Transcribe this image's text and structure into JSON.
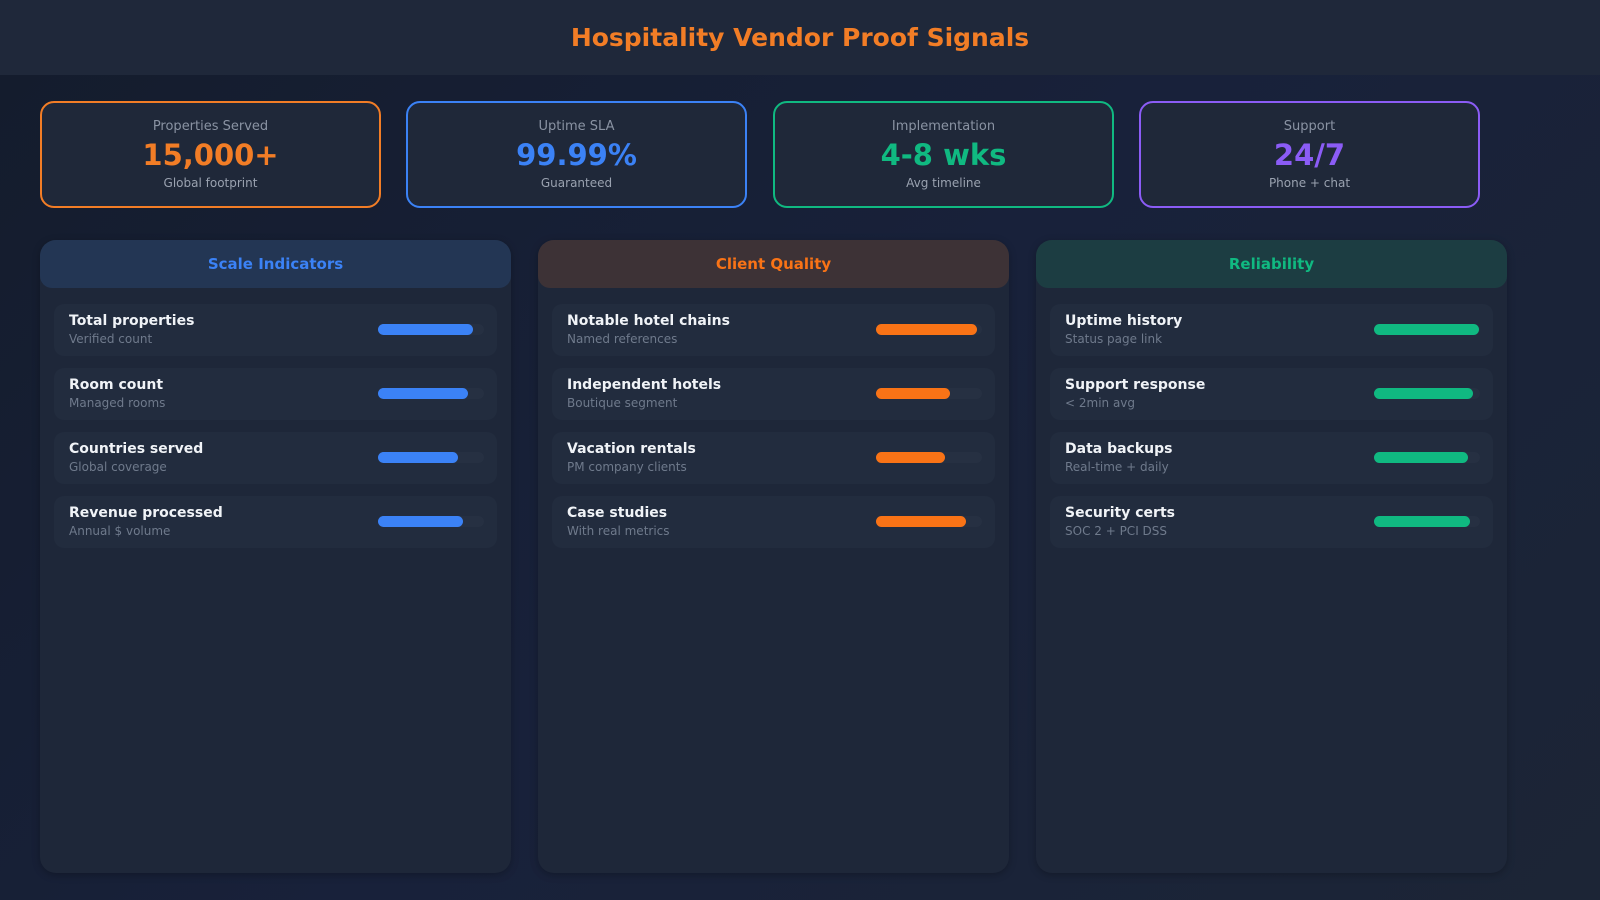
{
  "header": {
    "title": "Hospitality Vendor Proof Signals"
  },
  "kpis": [
    {
      "label": "Properties Served",
      "value": "15,000+",
      "sub": "Global footprint",
      "color": "#f27d26"
    },
    {
      "label": "Uptime SLA",
      "value": "99.99%",
      "sub": "Guaranteed",
      "color": "#3b82f6"
    },
    {
      "label": "Implementation",
      "value": "4-8 wks",
      "sub": "Avg timeline",
      "color": "#10b981"
    },
    {
      "label": "Support",
      "value": "24/7",
      "sub": "Phone + chat",
      "color": "#8b5cf6"
    }
  ],
  "panels": [
    {
      "title": "Scale Indicators",
      "color": "#3b82f6",
      "head_bg": "#233654",
      "items": [
        {
          "title": "Total properties",
          "sub": "Verified count",
          "pct": 90
        },
        {
          "title": "Room count",
          "sub": "Managed rooms",
          "pct": 85
        },
        {
          "title": "Countries served",
          "sub": "Global coverage",
          "pct": 75
        },
        {
          "title": "Revenue processed",
          "sub": "Annual $ volume",
          "pct": 80
        }
      ]
    },
    {
      "title": "Client Quality",
      "color": "#f97316",
      "head_bg": "#3d3236",
      "items": [
        {
          "title": "Notable hotel chains",
          "sub": "Named references",
          "pct": 95
        },
        {
          "title": "Independent hotels",
          "sub": "Boutique segment",
          "pct": 70
        },
        {
          "title": "Vacation rentals",
          "sub": "PM company clients",
          "pct": 65
        },
        {
          "title": "Case studies",
          "sub": "With real metrics",
          "pct": 85
        }
      ]
    },
    {
      "title": "Reliability",
      "color": "#10b981",
      "head_bg": "#1c3d42",
      "items": [
        {
          "title": "Uptime history",
          "sub": "Status page link",
          "pct": 99
        },
        {
          "title": "Support response",
          "sub": "< 2min avg",
          "pct": 93
        },
        {
          "title": "Data backups",
          "sub": "Real-time + daily",
          "pct": 89
        },
        {
          "title": "Security certs",
          "sub": "SOC 2 + PCI DSS",
          "pct": 91
        }
      ]
    }
  ]
}
